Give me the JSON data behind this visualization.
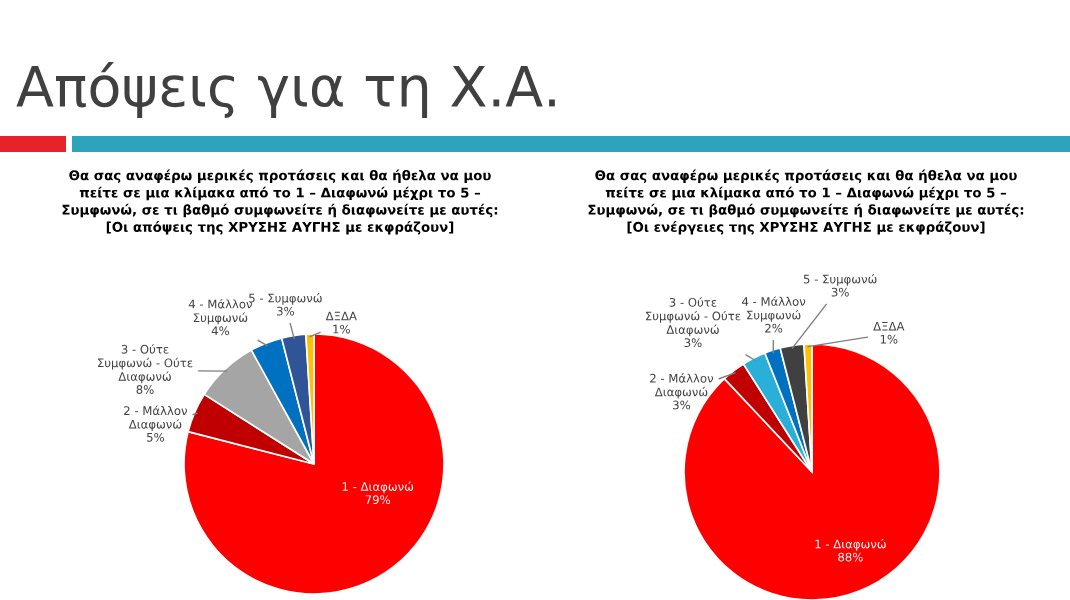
{
  "chart_data": [
    {
      "type": "pie",
      "title": "Απόψεις για τη Χ.Α.",
      "subtitle": "Θα σας αναφέρω μερικές προτάσεις και θα ήθελα να μου πείτε σε μια κλίμακα από το 1 – Διαφωνώ μέχρι το 5 – Συμφωνώ, σε τι βαθμό συμφωνείτε ή διαφωνείτε με αυτές: [Οι απόψεις της ΧΡΥΣΗΣ ΑΥΓΗΣ με εκφράζουν]",
      "categories": [
        "1 - Διαφωνώ",
        "2 - Μάλλον Διαφωνώ",
        "3 - Ούτε Συμφωνώ - Ούτε Διαφωνώ",
        "4 - Μάλλον Συμφωνώ",
        "5 - Συμφωνώ",
        "ΔΞΔΑ"
      ],
      "values": [
        79,
        5,
        8,
        4,
        3,
        1
      ],
      "colors": [
        "#ff0000",
        "#c00000",
        "#a5a5a5",
        "#0070c0",
        "#2f5597",
        "#ffc000"
      ],
      "value_labels": [
        "79%",
        "5%",
        "8%",
        "4%",
        "3%",
        "1%"
      ]
    },
    {
      "type": "pie",
      "subtitle": "Θα σας αναφέρω μερικές προτάσεις και θα ήθελα να μου πείτε σε μια κλίμακα από το 1 – Διαφωνώ μέχρι το 5 – Συμφωνώ, σε τι βαθμό συμφωνείτε ή διαφωνείτε με αυτές: [Οι ενέργειες της ΧΡΥΣΗΣ ΑΥΓΗΣ με εκφράζουν]",
      "categories": [
        "1 - Διαφωνώ",
        "2 - Μάλλον Διαφωνώ",
        "3 - Ούτε Συμφωνώ - Ούτε Διαφωνώ",
        "4 - Μάλλον Συμφωνώ",
        "5 - Συμφωνώ",
        "ΔΞΔΑ"
      ],
      "values": [
        88,
        3,
        3,
        2,
        3,
        1
      ],
      "colors": [
        "#ff0000",
        "#c00000",
        "#2ab0d8",
        "#0070c0",
        "#404040",
        "#ffc000"
      ],
      "value_labels": [
        "88%",
        "3%",
        "3%",
        "2%",
        "3%",
        "1%"
      ]
    }
  ]
}
